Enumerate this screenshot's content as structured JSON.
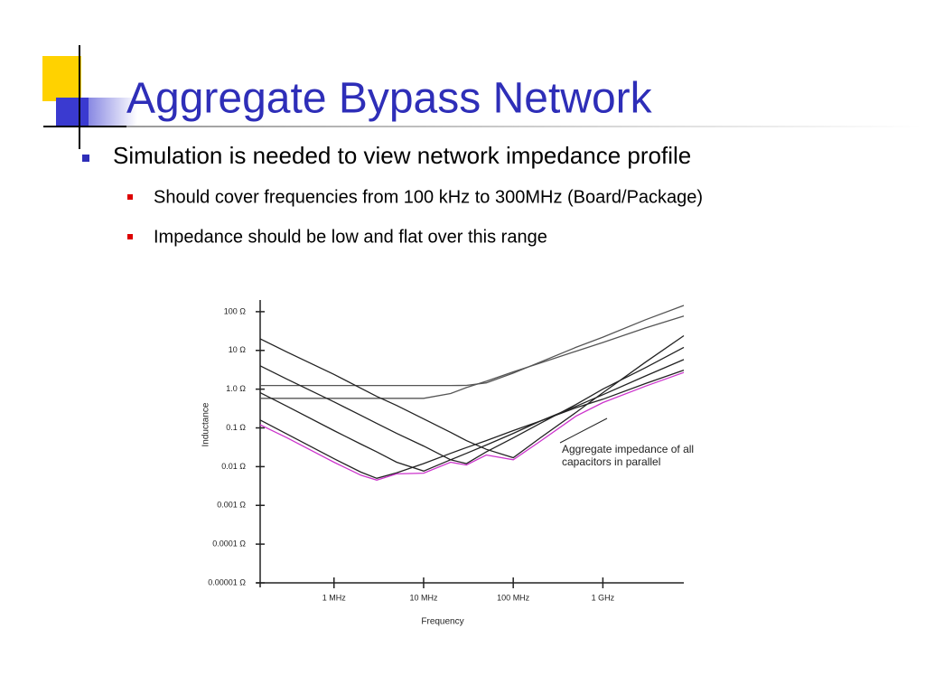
{
  "slide": {
    "title": "Aggregate Bypass Network",
    "bullets": [
      {
        "text": "Simulation is needed to view network impedance profile",
        "sub": [
          "Should cover frequencies from 100 kHz to 300MHz (Board/Package)",
          "Impedance should be low and flat over this range"
        ]
      }
    ]
  },
  "chart_data": {
    "type": "line",
    "x_label": "Frequency",
    "y_label": "Inductance",
    "annotation": "Aggregate impedance of all capacitors in parallel",
    "log_x": true,
    "log_y": true,
    "x": [
      150000,
      300000,
      1000000,
      2000000,
      3000000,
      5000000,
      10000000,
      20000000,
      30000000,
      50000000,
      100000000,
      200000000,
      500000000,
      1000000000,
      3000000000,
      8000000000
    ],
    "xlim": [
      150000,
      8000000000
    ],
    "xticks": [
      {
        "value": 1000000,
        "label": "1 MHz"
      },
      {
        "value": 10000000,
        "label": "10 MHz"
      },
      {
        "value": 100000000,
        "label": "100 MHz"
      },
      {
        "value": 1000000000,
        "label": "1 GHz"
      }
    ],
    "ylim": [
      1e-05,
      200
    ],
    "yticks": [
      {
        "value": 100,
        "label": "100 Ω"
      },
      {
        "value": 10,
        "label": "10 Ω"
      },
      {
        "value": 1,
        "label": "1.0 Ω"
      },
      {
        "value": 0.1,
        "label": "0.1 Ω"
      },
      {
        "value": 0.01,
        "label": "0.01 Ω"
      },
      {
        "value": 0.001,
        "label": "0.001 Ω"
      },
      {
        "value": 0.0001,
        "label": "0.0001 Ω"
      },
      {
        "value": 1e-05,
        "label": "0.00001 Ω"
      }
    ],
    "series": [
      {
        "color": "#555555",
        "values": [
          1.24,
          1.24,
          1.24,
          1.24,
          1.24,
          1.24,
          1.24,
          1.24,
          1.25,
          1.45,
          2.6,
          5,
          12,
          22,
          62,
          145
        ]
      },
      {
        "color": "#555555",
        "values": [
          0.58,
          0.58,
          0.58,
          0.58,
          0.58,
          0.58,
          0.58,
          0.77,
          1.1,
          1.6,
          2.8,
          4.7,
          9.5,
          16,
          38,
          77
        ]
      },
      {
        "color": "#222222",
        "values": [
          20,
          9,
          2.4,
          1.05,
          0.65,
          0.38,
          0.17,
          0.077,
          0.047,
          0.028,
          0.017,
          0.055,
          0.25,
          0.81,
          5,
          24
        ]
      },
      {
        "color": "#222222",
        "values": [
          4,
          1.8,
          0.47,
          0.21,
          0.13,
          0.072,
          0.034,
          0.015,
          0.012,
          0.024,
          0.055,
          0.13,
          0.4,
          1,
          3.6,
          12
        ]
      },
      {
        "color": "#222222",
        "values": [
          0.81,
          0.36,
          0.085,
          0.038,
          0.024,
          0.013,
          0.0077,
          0.015,
          0.022,
          0.036,
          0.072,
          0.15,
          0.36,
          0.72,
          2.2,
          5.8
        ]
      },
      {
        "color": "#222222",
        "values": [
          0.16,
          0.069,
          0.016,
          0.0072,
          0.005,
          0.0069,
          0.012,
          0.022,
          0.031,
          0.047,
          0.085,
          0.15,
          0.33,
          0.55,
          1.4,
          3.1
        ]
      },
      {
        "color": "#cc33cc",
        "values": [
          0.12,
          0.055,
          0.013,
          0.006,
          0.0045,
          0.0065,
          0.0068,
          0.013,
          0.011,
          0.02,
          0.015,
          0.045,
          0.2,
          0.45,
          1.2,
          2.7
        ]
      }
    ]
  }
}
